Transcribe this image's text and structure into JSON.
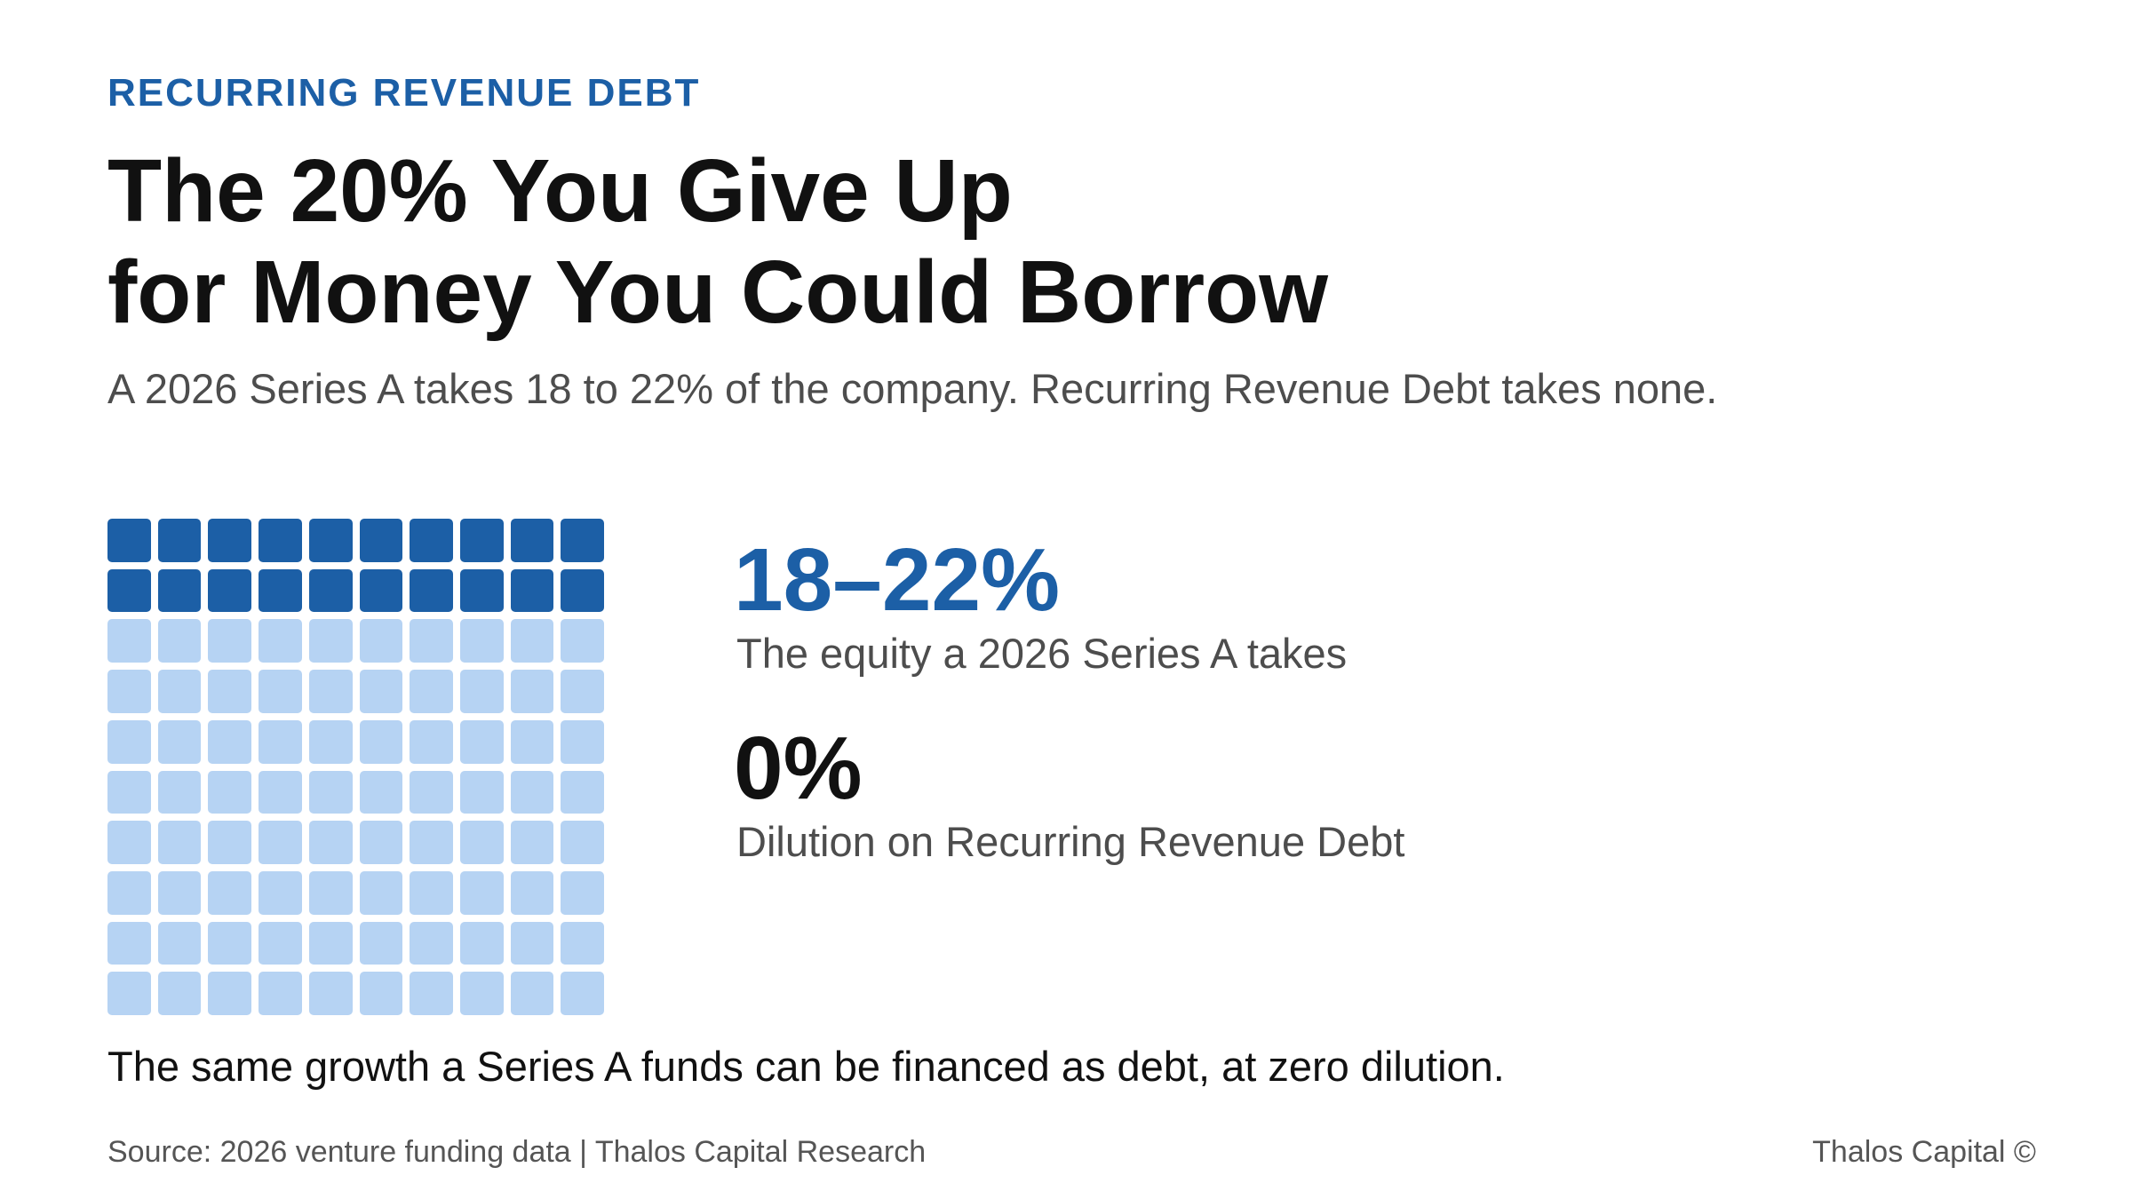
{
  "eyebrow": "RECURRING REVENUE DEBT",
  "title": {
    "line1": "The 20% You Give Up",
    "line2": "for Money You Could Borrow"
  },
  "subtitle": "A 2026 Series A takes 18 to 22% of the company. Recurring Revenue Debt takes none.",
  "waffle": {
    "total_cells": 100,
    "filled_cells": 20,
    "filled_color": "#1c5fa6",
    "empty_color": "#b6d3f3"
  },
  "stats": [
    {
      "value": "18–22%",
      "label": "The equity a 2026 Series A takes",
      "color": "#1c5fa6"
    },
    {
      "value": "0%",
      "label": "Dilution on Recurring Revenue Debt",
      "color": "#111111"
    }
  ],
  "takeaway": "The same growth a Series A funds can be financed as debt, at zero dilution.",
  "footer": {
    "source": "Source: 2026 venture funding data | Thalos Capital Research",
    "brand": "Thalos Capital ©"
  }
}
